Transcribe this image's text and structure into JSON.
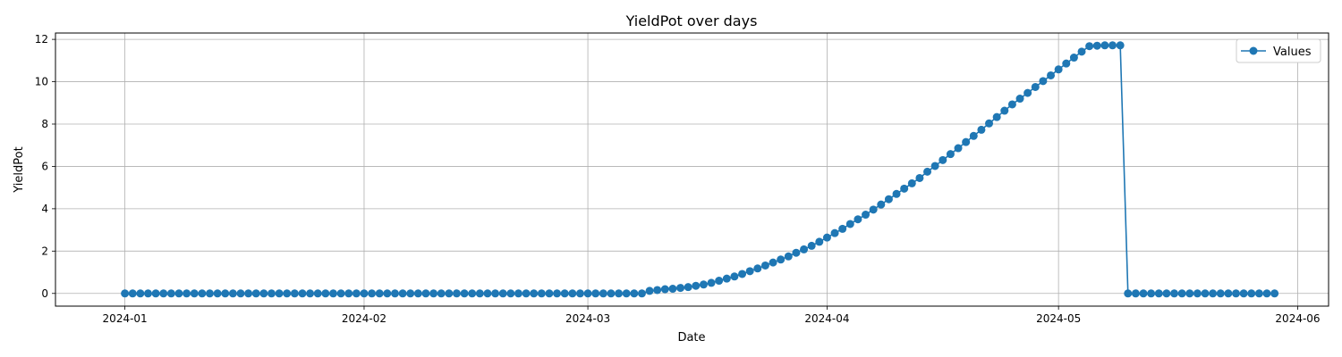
{
  "chart_data": {
    "type": "line",
    "title": "YieldPot over days",
    "xlabel": "Date",
    "ylabel": "YieldPot",
    "x_ticks": [
      "2024-01",
      "2024-02",
      "2024-03",
      "2024-04",
      "2024-05",
      "2024-06"
    ],
    "y_ticks": [
      0,
      2,
      4,
      6,
      8,
      10,
      12
    ],
    "xlim": [
      "2023-12-23",
      "2024-06-05"
    ],
    "ylim": [
      -0.6,
      12.3
    ],
    "grid": true,
    "legend": {
      "position": "top-right",
      "entries": [
        "Values"
      ]
    },
    "series": [
      {
        "name": "Values",
        "color": "#1f77b4",
        "marker": "circle",
        "start_date": "2024-01-01",
        "values": [
          0,
          0,
          0,
          0,
          0,
          0,
          0,
          0,
          0,
          0,
          0,
          0,
          0,
          0,
          0,
          0,
          0,
          0,
          0,
          0,
          0,
          0,
          0,
          0,
          0,
          0,
          0,
          0,
          0,
          0,
          0,
          0,
          0,
          0,
          0,
          0,
          0,
          0,
          0,
          0,
          0,
          0,
          0,
          0,
          0,
          0,
          0,
          0,
          0,
          0,
          0,
          0,
          0,
          0,
          0,
          0,
          0,
          0,
          0,
          0,
          0,
          0,
          0,
          0,
          0,
          0,
          0,
          0,
          0.12,
          0.16,
          0.2,
          0.22,
          0.26,
          0.3,
          0.36,
          0.42,
          0.5,
          0.6,
          0.7,
          0.8,
          0.92,
          1.05,
          1.18,
          1.32,
          1.46,
          1.6,
          1.75,
          1.92,
          2.08,
          2.25,
          2.44,
          2.64,
          2.85,
          3.05,
          3.28,
          3.5,
          3.72,
          3.96,
          4.2,
          4.45,
          4.7,
          4.95,
          5.2,
          5.45,
          5.75,
          6.02,
          6.3,
          6.58,
          6.86,
          7.15,
          7.44,
          7.73,
          8.03,
          8.33,
          8.63,
          8.93,
          9.2,
          9.47,
          9.75,
          10.03,
          10.3,
          10.58,
          10.86,
          11.14,
          11.42,
          11.68,
          11.7,
          11.72,
          11.72,
          11.72,
          0,
          0,
          0,
          0,
          0,
          0,
          0,
          0,
          0,
          0,
          0,
          0,
          0,
          0,
          0,
          0,
          0,
          0,
          0,
          0
        ]
      }
    ]
  }
}
